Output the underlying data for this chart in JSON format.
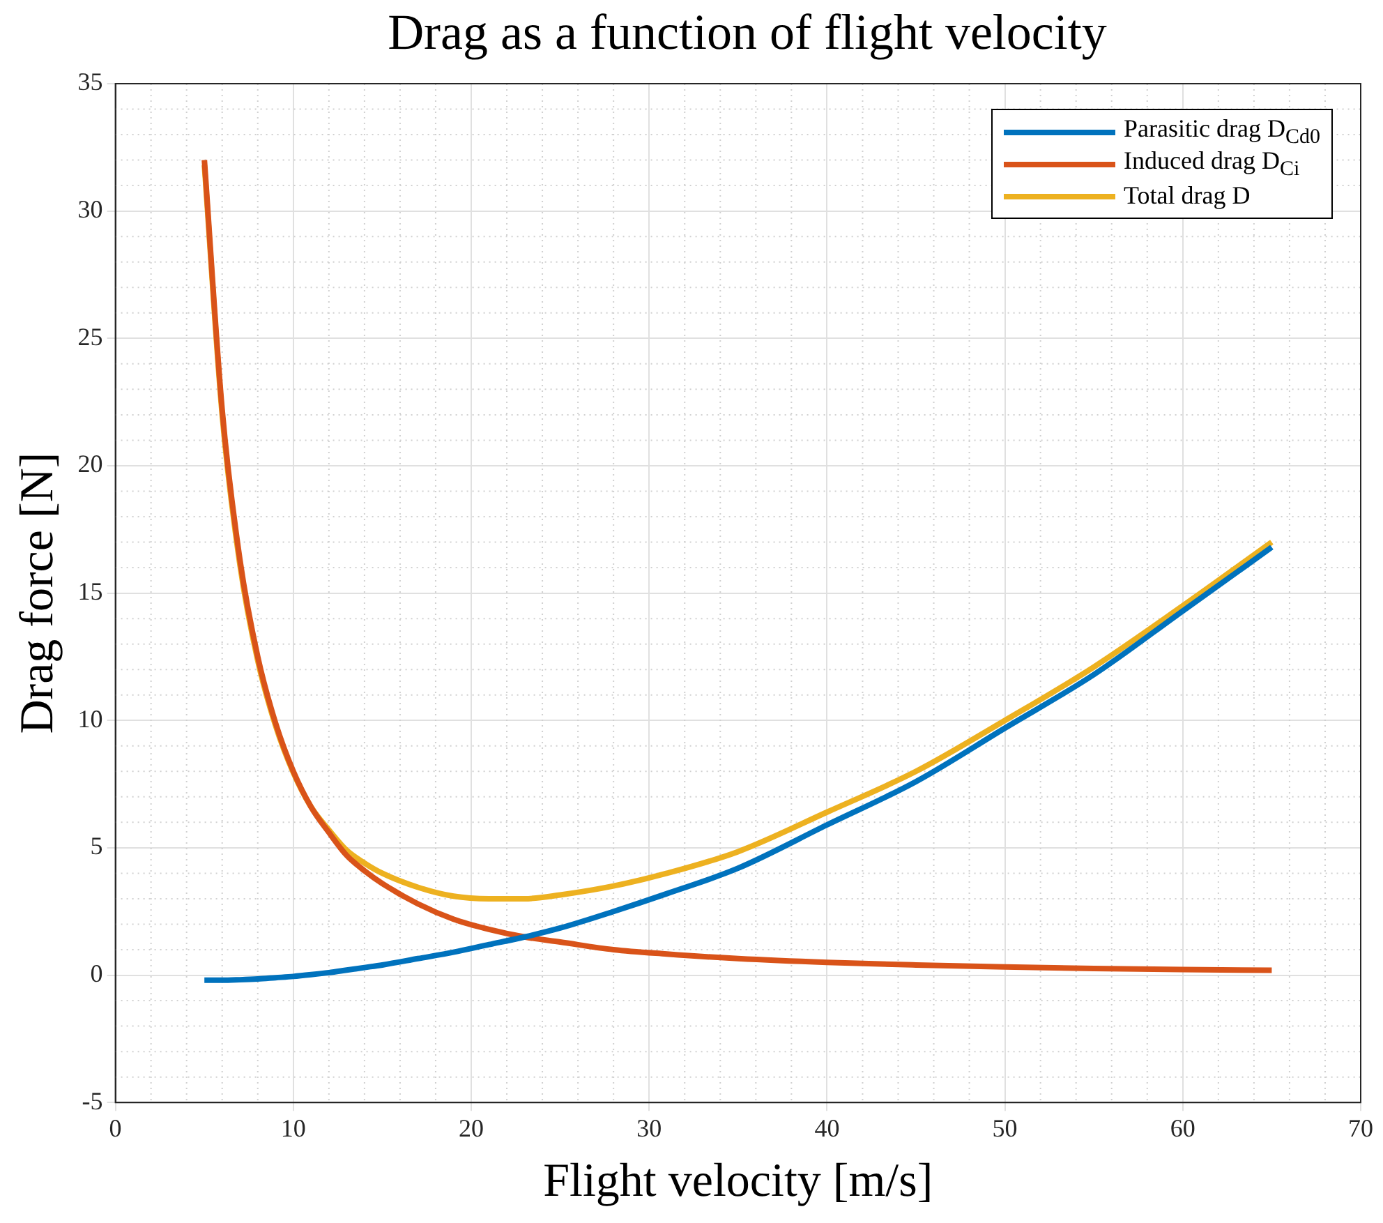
{
  "chart_data": {
    "type": "line",
    "title": "Drag as a function of flight velocity",
    "xlabel": "Flight velocity [m/s]",
    "ylabel": "Drag force [N]",
    "x": [
      5,
      6,
      7,
      8,
      9,
      10,
      11,
      12,
      13,
      14,
      15,
      17,
      19,
      21,
      23,
      25,
      28,
      31,
      35,
      40,
      45,
      50,
      55,
      60,
      65
    ],
    "series": [
      {
        "name": "Parasitic drag D$_{Cd0}$",
        "color": "#0072bd",
        "values": [
          -0.2,
          -0.2,
          -0.18,
          -0.15,
          -0.1,
          -0.05,
          0.02,
          0.1,
          0.2,
          0.3,
          0.4,
          0.65,
          0.9,
          1.2,
          1.5,
          1.85,
          2.5,
          3.2,
          4.2,
          5.9,
          7.6,
          9.7,
          11.8,
          14.3,
          16.8
        ]
      },
      {
        "name": "Induced drag D$_{Ci}$",
        "color": "#d95319",
        "values": [
          32,
          22.2,
          16.3,
          12.5,
          9.9,
          8,
          6.6,
          5.6,
          4.7,
          4.1,
          3.6,
          2.8,
          2.2,
          1.8,
          1.5,
          1.3,
          1.0,
          0.83,
          0.65,
          0.5,
          0.4,
          0.32,
          0.26,
          0.22,
          0.19
        ]
      },
      {
        "name": "Total drag D",
        "color": "#edb120",
        "values": [
          31.8,
          22.0,
          16.1,
          12.35,
          9.8,
          7.95,
          6.6,
          5.7,
          4.9,
          4.4,
          4.0,
          3.45,
          3.1,
          3.0,
          3.0,
          3.15,
          3.5,
          4.0,
          4.85,
          6.4,
          8.0,
          10.0,
          12.1,
          14.5,
          17.0
        ]
      }
    ],
    "xlim": [
      0,
      70
    ],
    "xticks": [
      0,
      10,
      20,
      30,
      40,
      50,
      60,
      70
    ],
    "ylim": [
      -5,
      35
    ],
    "yticks": [
      -5,
      0,
      5,
      10,
      15,
      20,
      25,
      30,
      35
    ],
    "grid": true,
    "legend": "top right",
    "marker": "none",
    "line_style": "solid"
  }
}
